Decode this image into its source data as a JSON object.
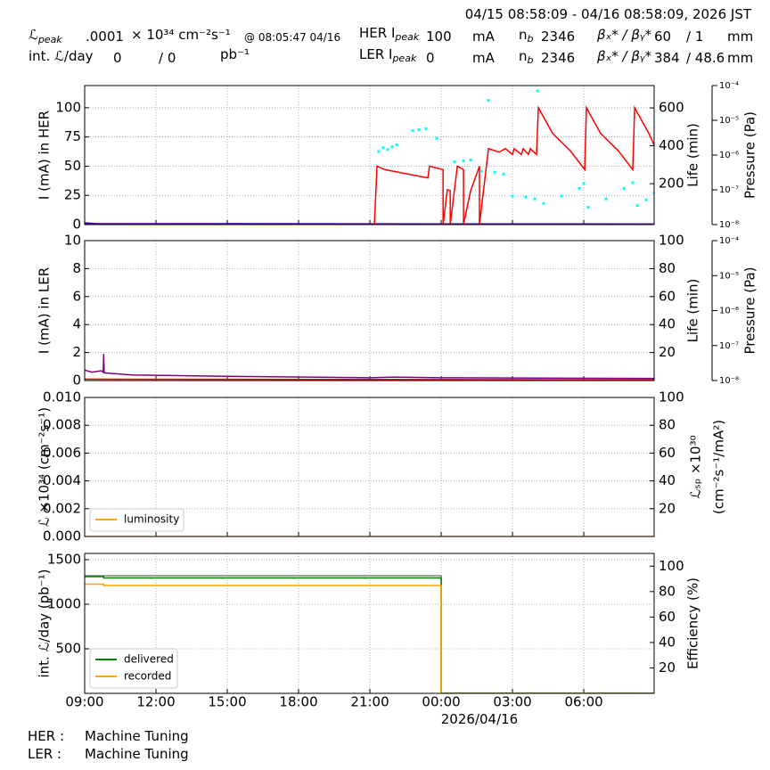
{
  "header": {
    "time_range": "04/15 08:58:09 - 04/16 08:58:09, 2026 JST",
    "lum_peak": {
      "symbol": "ℒ",
      "sub": "peak",
      "value": ".0001",
      "unit": "× 10³⁴ cm⁻²s⁻¹",
      "time": "@ 08:05:47 04/16"
    },
    "int_lum": {
      "label": "int. ℒ/day",
      "delivered": 0,
      "recorded": "/ 0",
      "unit": "pb⁻¹"
    },
    "her": {
      "label": "HER I",
      "sub": "peak",
      "current": 100,
      "unit": "mA",
      "nb": "n",
      "nb_sub": "b",
      "bunches": 2346,
      "beta": "βₓ* / βᵧ*",
      "beta_x": 60,
      "beta_y": "/ 1",
      "beta_unit": "mm"
    },
    "ler": {
      "label": "LER I",
      "sub": "peak",
      "current": 0,
      "unit": "mA",
      "nb": "n",
      "nb_sub": "b",
      "bunches": 2346,
      "beta": "βₓ* / βᵧ*",
      "beta_x": 384,
      "beta_y": "/ 48.6",
      "beta_unit": "mm"
    }
  },
  "x_date_label": "2026/04/16",
  "status": [
    {
      "ring": "HER :",
      "state": "Machine Tuning"
    },
    {
      "ring": "LER :",
      "state": "Machine Tuning"
    }
  ],
  "chart_data": [
    {
      "type": "line",
      "ylabel": "I (mA) in HER",
      "ylim": [
        0,
        119
      ],
      "yticks": [
        0,
        25,
        50,
        75,
        100
      ],
      "y2label": "Life (min)",
      "y2lim": [
        -16,
        718
      ],
      "y2ticks": [
        200,
        400,
        600
      ],
      "y3label": "Pressure (Pa)",
      "y3log": true,
      "y3lim": [
        1e-08,
        0.0001
      ],
      "y3ticks": [
        {
          "value": 1e-08,
          "label": "10⁻⁸"
        },
        {
          "value": 1e-07,
          "label": "10⁻⁷"
        },
        {
          "value": 1e-06,
          "label": "10⁻⁶"
        },
        {
          "value": 1e-05,
          "label": "10⁻⁵"
        },
        {
          "value": 0.0001,
          "label": "10⁻⁴"
        }
      ],
      "grid": true,
      "series": [
        {
          "color": "#0000cc",
          "mode": "lines",
          "x": [
            0,
            0.5,
            23.96
          ],
          "values": [
            1.5,
            0.8,
            0.5
          ]
        },
        {
          "color": "#800080",
          "mode": "lines",
          "x": [
            0,
            23.96
          ],
          "values": [
            0.5,
            0.2
          ]
        },
        {
          "color": "#ff0000",
          "mode": "lines",
          "x": [
            12.19,
            12.3,
            12.64,
            14.44,
            14.51,
            15.08,
            15.08,
            15.26,
            15.38,
            15.38,
            15.68,
            15.94,
            15.94,
            16.24,
            16.61,
            16.61,
            16.99,
            17.44,
            17.7,
            18.0,
            18.07,
            18.37,
            18.45,
            18.67,
            18.75,
            19.01,
            19.09,
            19.69,
            20.44,
            21.04,
            21.11,
            21.71,
            22.46,
            23.06,
            23.14,
            23.74,
            23.96
          ],
          "values": [
            0,
            50,
            47,
            40,
            50,
            47,
            0,
            30,
            29,
            0,
            50,
            47,
            0,
            29,
            50,
            0,
            65,
            62,
            65,
            60,
            65,
            60,
            65,
            60,
            65,
            60,
            100,
            78,
            63,
            47,
            100,
            78,
            63,
            47,
            100,
            78,
            68
          ]
        },
        {
          "color": "#00ffff",
          "mode": "markers",
          "axis": "y2",
          "x": [
            12.37,
            12.56,
            12.75,
            12.94,
            13.13,
            13.8,
            14.06,
            14.36,
            14.81,
            15.56,
            15.94,
            16.24,
            16.69,
            16.99,
            17.25,
            17.62,
            18.0,
            18.56,
            18.94,
            19.05,
            19.31,
            20.06,
            20.81,
            21.0,
            21.19,
            21.94,
            22.69,
            23.06,
            23.25,
            23.62,
            23.96
          ],
          "values": [
            370,
            390,
            380,
            395,
            405,
            480,
            485,
            490,
            440,
            315,
            320,
            325,
            265,
            640,
            260,
            250,
            135,
            130,
            120,
            690,
            95,
            135,
            175,
            200,
            75,
            120,
            175,
            205,
            85,
            115,
            150
          ]
        }
      ]
    },
    {
      "type": "line",
      "ylabel": "I (mA) in LER",
      "ylim": [
        0,
        10
      ],
      "yticks": [
        0,
        2,
        4,
        6,
        8,
        10
      ],
      "y2label": "Life (min)",
      "y2lim": [
        0,
        100
      ],
      "y2ticks": [
        20,
        40,
        60,
        80,
        100
      ],
      "y3label": "Pressure (Pa)",
      "y3log": true,
      "y3lim": [
        1e-08,
        0.0001
      ],
      "y3ticks": [
        {
          "value": 1e-08,
          "label": "10⁻⁸"
        },
        {
          "value": 1e-07,
          "label": "10⁻⁷"
        },
        {
          "value": 1e-06,
          "label": "10⁻⁶"
        },
        {
          "value": 1e-05,
          "label": "10⁻⁵"
        },
        {
          "value": 0.0001,
          "label": "10⁻⁴"
        }
      ],
      "grid": true,
      "series": [
        {
          "color": "#ff0000",
          "mode": "lines",
          "x": [
            0,
            23.96
          ],
          "values": [
            0.1,
            0.05
          ]
        },
        {
          "color": "#800080",
          "mode": "lines",
          "x": [
            0,
            0.3,
            0.7,
            0.78,
            0.8,
            0.82,
            2,
            6,
            12,
            13,
            15,
            23.96
          ],
          "values": [
            0.75,
            0.6,
            0.7,
            0.6,
            1.9,
            0.55,
            0.4,
            0.3,
            0.2,
            0.25,
            0.2,
            0.15
          ]
        }
      ]
    },
    {
      "type": "line",
      "ylabel": "ℒ ×10³⁴ (cm⁻²s⁻¹)",
      "ylim": [
        0,
        0.01
      ],
      "yticks": [
        {
          "value": 0,
          "label": "0.000"
        },
        {
          "value": 0.002,
          "label": "0.002"
        },
        {
          "value": 0.004,
          "label": "0.004"
        },
        {
          "value": 0.006,
          "label": "0.006"
        },
        {
          "value": 0.008,
          "label": "0.008"
        },
        {
          "value": 0.01,
          "label": "0.010"
        }
      ],
      "y2label": [
        "ℒₛₚ ×10³⁰",
        "(cm⁻²s⁻¹/mA²)"
      ],
      "y2lim": [
        0,
        100
      ],
      "y2ticks": [
        20,
        40,
        60,
        80,
        100
      ],
      "grid": true,
      "legend": "lower left",
      "series": [
        {
          "name": "luminosity",
          "color": "#ffa500",
          "mode": "lines",
          "x": [
            0,
            23.96
          ],
          "values": [
            0,
            0
          ]
        }
      ]
    },
    {
      "type": "line",
      "ylabel": "int. ℒ/day (pb⁻¹)",
      "ylim": [
        0,
        1570
      ],
      "yticks": [
        500,
        1000,
        1500
      ],
      "y2label": "Efficiency (%)",
      "y2lim": [
        0,
        110
      ],
      "y2ticks": [
        20,
        40,
        60,
        80,
        100
      ],
      "xlim": [
        0,
        23.96
      ],
      "xticks": [
        {
          "value": 0,
          "label": "09:00"
        },
        {
          "value": 3,
          "label": "12:00"
        },
        {
          "value": 6,
          "label": "15:00"
        },
        {
          "value": 9,
          "label": "18:00"
        },
        {
          "value": 12,
          "label": "21:00"
        },
        {
          "value": 15,
          "label": "00:00"
        },
        {
          "value": 18,
          "label": "03:00"
        },
        {
          "value": 21,
          "label": "06:00"
        }
      ],
      "grid": true,
      "legend": "lower left",
      "series": [
        {
          "color": "#808080",
          "mode": "lines",
          "axis": "y2",
          "x": [
            0,
            15,
            15,
            23.96
          ],
          "values": [
            92.5,
            92.5,
            0,
            0
          ]
        },
        {
          "name": "delivered",
          "color": "#008000",
          "mode": "lines",
          "x": [
            0,
            0.8,
            0.8,
            15,
            15,
            23.96
          ],
          "values": [
            1310,
            1310,
            1295,
            1295,
            0,
            0
          ]
        },
        {
          "name": "recorded",
          "color": "#ffa500",
          "mode": "lines",
          "x": [
            0,
            0.8,
            0.8,
            15,
            15,
            23.96
          ],
          "values": [
            1225,
            1225,
            1210,
            1210,
            0,
            0
          ]
        }
      ]
    }
  ]
}
